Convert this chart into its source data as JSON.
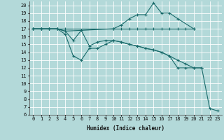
{
  "xlabel": "Humidex (Indice chaleur)",
  "xlim": [
    -0.5,
    23.5
  ],
  "ylim": [
    6,
    20.5
  ],
  "xticks": [
    0,
    1,
    2,
    3,
    4,
    5,
    6,
    7,
    8,
    9,
    10,
    11,
    12,
    13,
    14,
    15,
    16,
    17,
    18,
    19,
    20,
    21,
    22,
    23
  ],
  "yticks": [
    6,
    7,
    8,
    9,
    10,
    11,
    12,
    13,
    14,
    15,
    16,
    17,
    18,
    19,
    20
  ],
  "bg_color": "#b3d9d9",
  "grid_color": "#ffffff",
  "line_color": "#1a6b6b",
  "series": [
    {
      "x": [
        0,
        1,
        2,
        3,
        4,
        10,
        11,
        12,
        13,
        14,
        15,
        16,
        17,
        18,
        19,
        20
      ],
      "y": [
        17,
        17,
        17,
        17,
        17,
        17,
        17,
        17,
        17,
        17,
        17,
        17,
        17,
        17,
        17,
        17
      ]
    },
    {
      "x": [
        0,
        1,
        2,
        3,
        4,
        10,
        11,
        12,
        13,
        14,
        15,
        16,
        17,
        18,
        20
      ],
      "y": [
        17,
        17,
        17,
        17,
        16.7,
        17,
        17.5,
        18.3,
        18.8,
        18.8,
        20.3,
        19,
        19,
        18.3,
        17
      ]
    },
    {
      "x": [
        0,
        1,
        2,
        3,
        4,
        5,
        6,
        7,
        8,
        9,
        10,
        11,
        12,
        13,
        14,
        15,
        16,
        17,
        18,
        19,
        20,
        21
      ],
      "y": [
        17,
        17,
        17,
        17,
        16.7,
        15.5,
        16.8,
        14.8,
        15.3,
        15.5,
        15.5,
        15.3,
        15,
        14.8,
        14.5,
        14.3,
        14,
        13.5,
        13,
        12.5,
        12,
        12
      ]
    },
    {
      "x": [
        0,
        1,
        2,
        3,
        4,
        5,
        6,
        7,
        8,
        9,
        10,
        11,
        12,
        13,
        14,
        15,
        16,
        17,
        18,
        19,
        20,
        21,
        22,
        23
      ],
      "y": [
        17,
        17,
        17,
        17,
        16.3,
        13.5,
        13,
        14.5,
        14.5,
        15,
        15.5,
        15.3,
        15,
        14.8,
        14.5,
        14.3,
        14,
        13.5,
        12,
        12,
        12,
        12,
        6.8,
        6.5
      ]
    }
  ]
}
